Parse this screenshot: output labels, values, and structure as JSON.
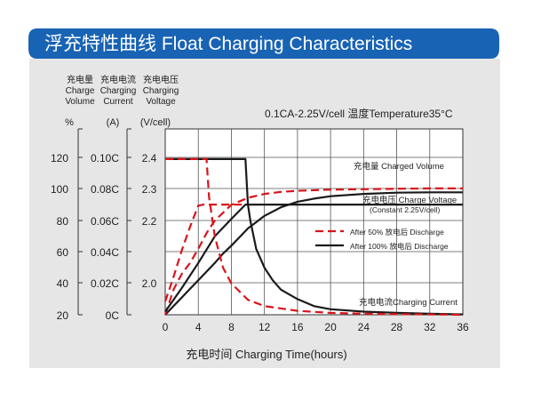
{
  "title": "浮充特性曲线 Float Charging Characteristics",
  "colors": {
    "banner": "#1863b4",
    "panel": "#e6e6e6",
    "red": "#d8151b",
    "black": "#1a1a1a"
  },
  "axis_headers": {
    "volume": [
      "充电量",
      "Charge",
      "Volume"
    ],
    "current": [
      "充电电流",
      "Charging",
      "Current"
    ],
    "voltage": [
      "充电电压",
      "Charging",
      "Voltage"
    ]
  },
  "axis_units": {
    "volume": "%",
    "current": "(A)",
    "voltage": "(V/cell)"
  },
  "condition": "0.1CA-2.25V/cell  温度Temperature35°C",
  "chart_data": {
    "type": "line",
    "xlabel": "充电时间 Charging Time(hours)",
    "xlim": [
      0,
      36
    ],
    "x_ticks": [
      "0",
      "4",
      "8",
      "12",
      "16",
      "20",
      "24",
      "28",
      "32",
      "36"
    ],
    "volume_axis": {
      "unit": "%",
      "ticks": [
        "20",
        "40",
        "60",
        "80",
        "100",
        "120"
      ],
      "range": [
        20,
        120
      ]
    },
    "current_axis": {
      "unit": "(A)",
      "ticks": [
        "0C",
        "0.02C",
        "0.04C",
        "0.06C",
        "0.08C",
        "0.10C"
      ],
      "range": [
        0,
        0.1
      ]
    },
    "voltage_axis": {
      "unit": "(V/cell)",
      "ticks": [
        "2.0",
        "2.2",
        "2.3",
        "2.4"
      ]
    },
    "legend": [
      {
        "label": "After 50%  放电后 Discharge",
        "style": "dashed",
        "color": "#d8151b"
      },
      {
        "label": "After 100%  放电后 Discharge",
        "style": "solid",
        "color": "#1a1a1a"
      }
    ],
    "curve_labels": {
      "volume": "充电量 Charged Volume",
      "voltage": "充电电压 Charge Voltage",
      "voltage_sub": "(Constant 2.25V/cell)",
      "current": "充电电流Charging Current"
    },
    "series": [
      {
        "name": "充电量 Charged Volume",
        "axis": "volume",
        "style": "solid",
        "x": [
          0,
          1,
          2,
          3,
          4,
          5,
          6,
          7,
          8,
          9,
          10,
          11,
          12,
          14,
          16,
          18,
          20,
          24,
          28,
          32,
          36
        ],
        "y": [
          20,
          25.5,
          31,
          36.5,
          42,
          47.5,
          53,
          59,
          64,
          69.5,
          75,
          79,
          83,
          88.5,
          92,
          94,
          95.5,
          97,
          97.8,
          98,
          98
        ]
      },
      {
        "name": "充电量 Charged Volume",
        "axis": "volume",
        "style": "dashed",
        "x": [
          0,
          1,
          2,
          3,
          4,
          5,
          6,
          8,
          10,
          12,
          14,
          16,
          20,
          24,
          28,
          32,
          36
        ],
        "y": [
          20,
          36,
          46,
          53,
          62,
          72,
          80,
          90,
          94.5,
          97,
          98.3,
          99,
          99.7,
          100,
          100.3,
          100.5,
          100.5
        ]
      },
      {
        "name": "充电电压 Charge Voltage",
        "axis": "current",
        "style": "solid",
        "x": [
          0,
          9.7,
          10,
          36
        ],
        "y": [
          0.0992,
          0.0992,
          0.0702,
          0.0702
        ]
      },
      {
        "name": "充电电压 Charge Voltage",
        "axis": "current",
        "style": "dashed",
        "x": [
          0,
          1,
          2,
          3,
          4,
          4.6,
          5,
          6,
          8,
          9.6
        ],
        "y": [
          0.0085,
          0.024,
          0.041,
          0.056,
          0.0695,
          0.0702,
          0.0702,
          0.0702,
          0.0702,
          0.0702
        ]
      },
      {
        "name": "充电电流Charging Current",
        "axis": "current",
        "style": "solid",
        "x": [
          0,
          2,
          4,
          6,
          8,
          9.7,
          10,
          10.3,
          11,
          12,
          13,
          14,
          16,
          18,
          20,
          24,
          28,
          32,
          36
        ],
        "y": [
          0.002,
          0.017,
          0.033,
          0.05,
          0.061,
          0.0702,
          0.0702,
          0.06,
          0.042,
          0.03,
          0.022,
          0.016,
          0.01,
          0.0055,
          0.0035,
          0.002,
          0.0012,
          0.0006,
          0.0002
        ]
      },
      {
        "name": "充电电流Charging Current",
        "axis": "current",
        "style": "dashed",
        "x": [
          0,
          1,
          2,
          3,
          4,
          4.6,
          5,
          5.3,
          6,
          7,
          8,
          10,
          12,
          16,
          20,
          24,
          28,
          32,
          36
        ],
        "y": [
          0.0992,
          0.0992,
          0.0992,
          0.0992,
          0.0992,
          0.0992,
          0.0992,
          0.075,
          0.05,
          0.03,
          0.02,
          0.0095,
          0.0055,
          0.0025,
          0.0012,
          0.0007,
          0.0004,
          0.0002,
          0.0
        ]
      }
    ]
  }
}
